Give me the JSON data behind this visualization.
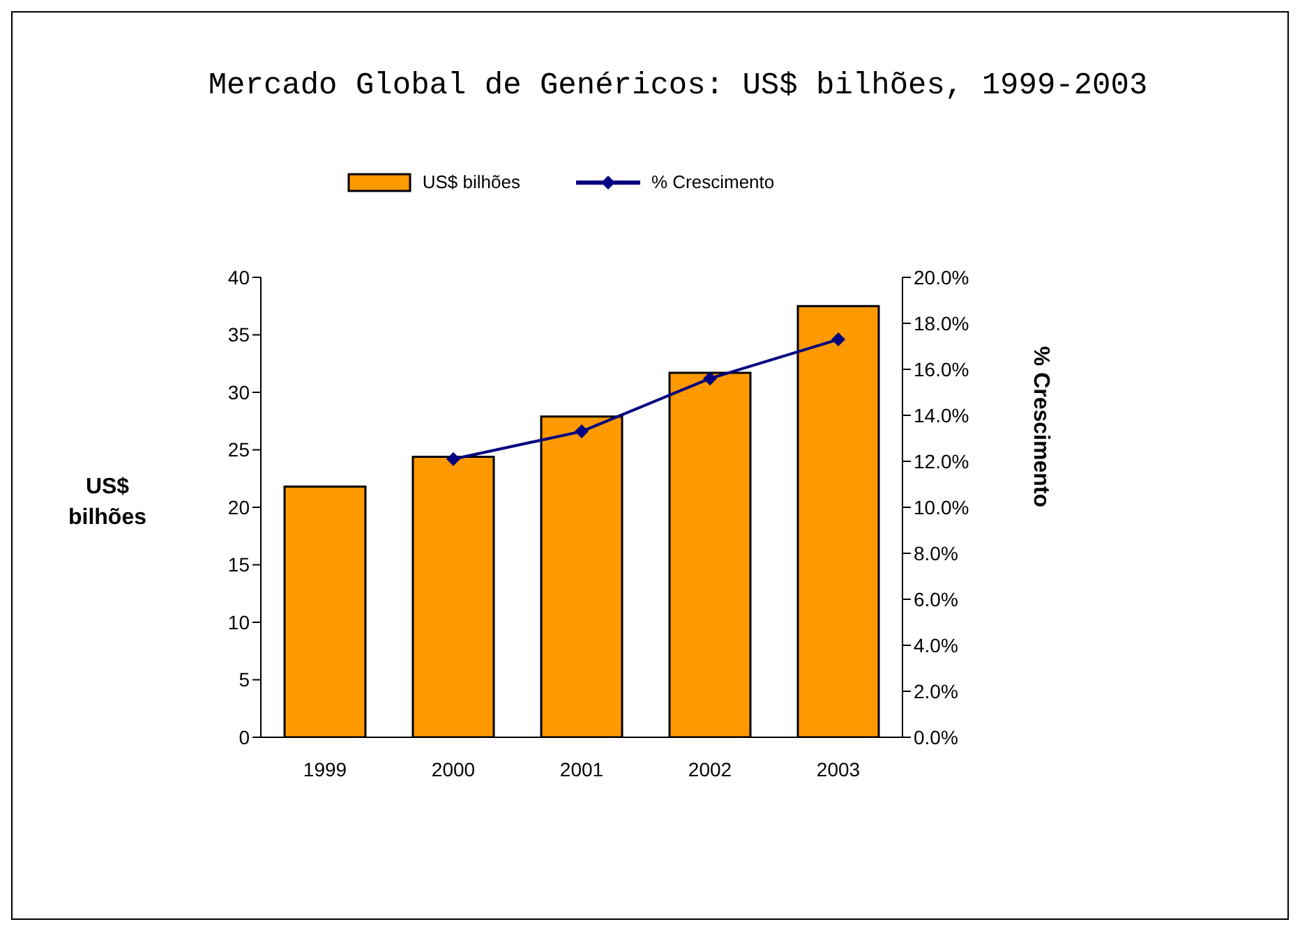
{
  "chart_data": {
    "type": "bar",
    "title": "Mercado Global de Genéricos: US$ bilhões, 1999-2003",
    "ylabel": "US$ bilhões",
    "y2label": "% Crescimento",
    "categories": [
      "1999",
      "2000",
      "2001",
      "2002",
      "2003"
    ],
    "series": [
      {
        "name": "US$ bilhões",
        "color": "#ff9900",
        "values": [
          21.8,
          24.4,
          27.9,
          31.7,
          37.5
        ]
      },
      {
        "name": "% Crescimento",
        "type": "line",
        "axis": "y2",
        "color": "#000080",
        "values": [
          null,
          12.1,
          13.3,
          15.6,
          17.3
        ]
      }
    ],
    "ylim": [
      0,
      40
    ],
    "yticks": [
      0,
      5,
      10,
      15,
      20,
      25,
      30,
      35,
      40
    ],
    "y2lim": [
      0,
      20
    ],
    "y2ticks": [
      {
        "value": 0,
        "label": "0.0%"
      },
      {
        "value": 2,
        "label": "2.0%"
      },
      {
        "value": 4,
        "label": "4.0%"
      },
      {
        "value": 6,
        "label": "6.0%"
      },
      {
        "value": 8,
        "label": "8.0%"
      },
      {
        "value": 10,
        "label": "10.0%"
      },
      {
        "value": 12,
        "label": "12.0%"
      },
      {
        "value": 14,
        "label": "14.0%"
      },
      {
        "value": 16,
        "label": "16.0%"
      },
      {
        "value": 18,
        "label": "18.0%"
      },
      {
        "value": 20,
        "label": "20.0%"
      }
    ],
    "legend": "top",
    "marker": "diamond"
  }
}
